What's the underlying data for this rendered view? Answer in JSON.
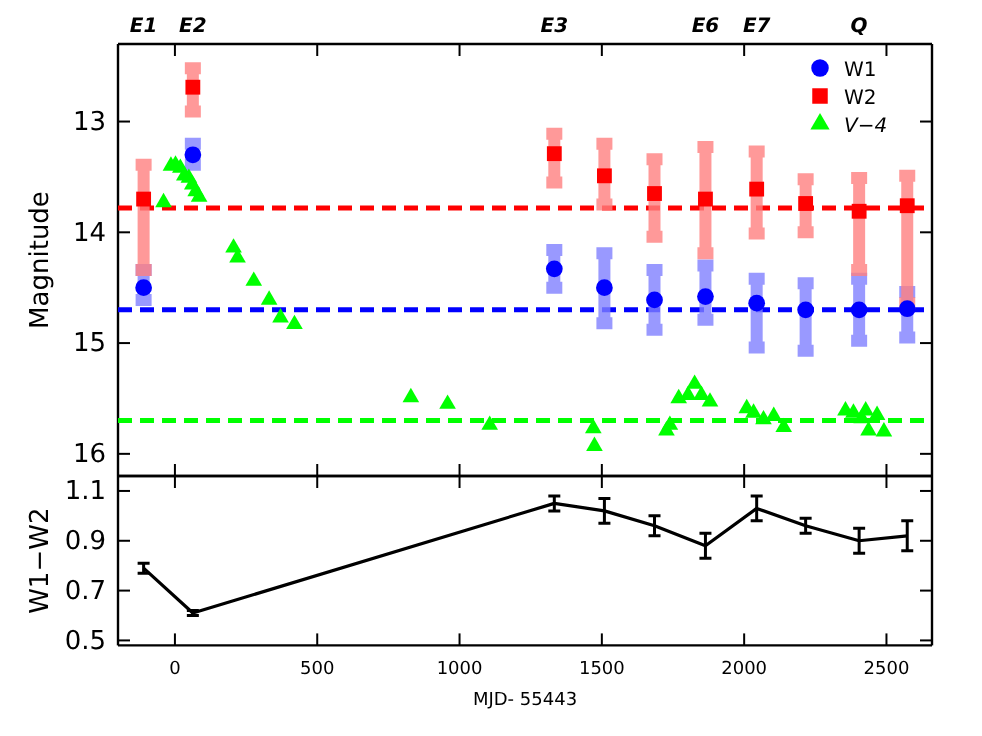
{
  "chart_data": [
    {
      "type": "scatter",
      "ylabel": "Magnitude",
      "xlim": [
        -200,
        2660
      ],
      "xticks": [
        0,
        500,
        1000,
        1500,
        2000,
        2500
      ],
      "ylim": [
        16.2,
        12.3
      ],
      "yticks": [
        13,
        14,
        15,
        16
      ],
      "tick_labels": "y",
      "legend": "top right",
      "annotations": [
        "E1",
        "E2",
        "E3",
        "E6",
        "E7",
        "Q"
      ],
      "ref_lines": [
        {
          "axis": "y",
          "value": 13.78,
          "color": "#ff0000",
          "line_style": "dashed"
        },
        {
          "axis": "y",
          "value": 14.7,
          "color": "#0000ff",
          "line_style": "dashed"
        },
        {
          "axis": "y",
          "value": 15.7,
          "color": "#00ff00",
          "line_style": "dashed"
        }
      ],
      "series": [
        {
          "name": "W1",
          "color": "#0000ff",
          "marker": "circle",
          "x": [
            -110,
            63,
            1333,
            1509,
            1685,
            1864,
            2044,
            2216,
            2404,
            2573
          ],
          "values": [
            14.5,
            13.3,
            14.33,
            14.5,
            14.61,
            14.58,
            14.64,
            14.7,
            14.7,
            14.69
          ],
          "errors": [
            [
              14.34,
              14.61
            ],
            [
              13.2,
              13.39
            ],
            [
              14.16,
              14.5
            ],
            [
              14.19,
              14.82
            ],
            [
              14.34,
              14.88
            ],
            [
              14.3,
              14.79
            ],
            [
              14.42,
              15.04
            ],
            [
              14.46,
              15.07
            ],
            [
              14.42,
              14.98
            ],
            [
              14.54,
              14.95
            ]
          ]
        },
        {
          "name": "W2",
          "color": "#ff0000",
          "marker": "square",
          "x": [
            -110,
            63,
            1333,
            1509,
            1685,
            1864,
            2044,
            2216,
            2404,
            2573
          ],
          "values": [
            13.7,
            12.69,
            13.29,
            13.49,
            13.65,
            13.7,
            13.61,
            13.74,
            13.81,
            13.76
          ],
          "errors": [
            [
              13.39,
              14.34
            ],
            [
              12.52,
              12.91
            ],
            [
              13.11,
              13.55
            ],
            [
              13.2,
              13.75
            ],
            [
              13.34,
              14.04
            ],
            [
              13.23,
              14.19
            ],
            [
              13.27,
              14.01
            ],
            [
              13.52,
              14.0
            ],
            [
              13.51,
              14.34
            ],
            [
              13.49,
              14.64
            ]
          ]
        },
        {
          "name": "V−4",
          "color": "#00ff00",
          "marker": "triangle",
          "x": [
            -40,
            -14,
            2,
            19,
            33,
            49,
            61,
            73,
            85,
            206,
            220,
            277,
            331,
            371,
            420,
            829,
            958,
            1106,
            1470,
            1474,
            1727,
            1739,
            1770,
            1803,
            1826,
            1850,
            1880,
            2009,
            2033,
            2068,
            2104,
            2139,
            2356,
            2384,
            2413,
            2427,
            2437,
            2467,
            2491
          ],
          "values": [
            13.73,
            13.4,
            13.39,
            13.42,
            13.49,
            13.51,
            13.57,
            13.63,
            13.68,
            14.14,
            14.23,
            14.44,
            14.61,
            14.77,
            14.83,
            15.49,
            15.55,
            15.74,
            15.77,
            15.93,
            15.79,
            15.74,
            15.5,
            15.47,
            15.37,
            15.47,
            15.53,
            15.59,
            15.63,
            15.69,
            15.66,
            15.76,
            15.61,
            15.63,
            15.68,
            15.61,
            15.79,
            15.65,
            15.8
          ]
        }
      ]
    },
    {
      "type": "line",
      "xlabel": "MJD- 55443",
      "ylabel": "W1−W2",
      "xlim": [
        -200,
        2660
      ],
      "xticks": [
        0,
        500,
        1000,
        1500,
        2000,
        2500
      ],
      "ylim": [
        0.48,
        1.16
      ],
      "yticks": [
        0.5,
        0.7,
        0.9,
        1.1
      ],
      "series": [
        {
          "color": "#000000",
          "x": [
            -110,
            63,
            1333,
            1509,
            1685,
            1864,
            2044,
            2216,
            2404,
            2573
          ],
          "values": [
            0.79,
            0.61,
            1.05,
            1.02,
            0.96,
            0.88,
            1.03,
            0.96,
            0.9,
            0.92
          ],
          "errors": [
            0.02,
            0.01,
            0.03,
            0.05,
            0.04,
            0.05,
            0.05,
            0.03,
            0.05,
            0.06
          ]
        }
      ]
    }
  ]
}
